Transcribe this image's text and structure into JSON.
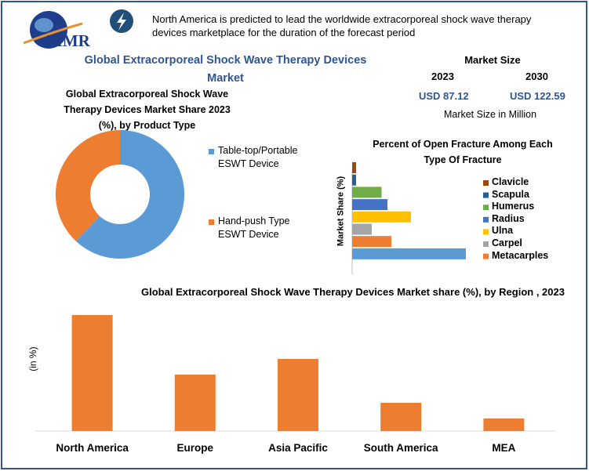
{
  "header": {
    "logo": "MMR",
    "text": "North America is predicted to lead the worldwide extracorporeal shock wave therapy devices marketplace for the duration of the forecast period"
  },
  "title": "Global Extracorporeal Shock Wave Therapy Devices Market",
  "market_size": {
    "title": "Market Size",
    "years": [
      "2023",
      "2030"
    ],
    "values": [
      "USD 87.12",
      "USD 122.59"
    ],
    "note": "Market Size in Million"
  },
  "chart_data": [
    {
      "type": "pie",
      "donut": true,
      "title": "Global Extracorporeal Shock Wave Therapy Devices Market Share 2023 (%), by Product Type",
      "categories": [
        "Table-top/Portable ESWT Device",
        "Hand-push Type ESWT Device"
      ],
      "values": [
        62,
        38
      ],
      "colors": [
        "#5b9bd5",
        "#ed7d31"
      ]
    },
    {
      "type": "bar",
      "orientation": "horizontal",
      "title": "Percent of Open Fracture Among Each Type Of Fracture",
      "ylabel": "Market Share (%)",
      "categories": [
        "Clavicle",
        "Scapula",
        "Humerus",
        "Radius",
        "Ulna",
        "Carpel",
        "Metacarples",
        null
      ],
      "values": [
        1,
        1,
        7.5,
        9,
        15,
        5,
        10,
        29
      ],
      "colors": [
        "#9e480e",
        "#255e91",
        "#70ad47",
        "#4472c4",
        "#ffc000",
        "#a5a5a5",
        "#ed7d31",
        "#5b9bd5"
      ],
      "xlim": [
        0,
        40
      ]
    },
    {
      "type": "bar",
      "title": "Global Extracorporeal Shock Wave Therapy Devices Market share (%), by Region , 2023",
      "ylabel": "(in %)",
      "categories": [
        "North America",
        "Europe",
        "Asia Pacific",
        "South America",
        "MEA"
      ],
      "values": [
        37,
        18,
        23,
        9,
        4
      ],
      "color": "#ed7d31",
      "ylim": [
        0,
        40
      ]
    }
  ]
}
